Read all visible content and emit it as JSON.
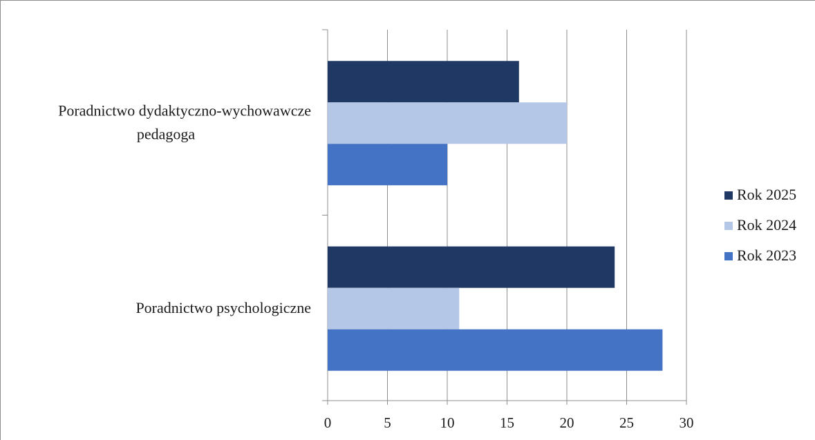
{
  "chart_data": {
    "type": "bar",
    "orientation": "horizontal",
    "categories": [
      "Poradnictwo dydaktyczno-wychowawcze pedagoga",
      "Poradnictwo psychologiczne"
    ],
    "category_lines": [
      [
        "Poradnictwo dydaktyczno-wychowawcze",
        "pedagoga"
      ],
      [
        "Poradnictwo psychologiczne"
      ]
    ],
    "series": [
      {
        "name": "Rok 2025",
        "color": "#203864",
        "values": [
          16,
          24
        ]
      },
      {
        "name": "Rok 2024",
        "color": "#b4c7e7",
        "values": [
          20,
          11
        ]
      },
      {
        "name": "Rok 2023",
        "color": "#4472c4",
        "values": [
          10,
          28
        ]
      }
    ],
    "xlim": [
      0,
      30
    ],
    "x_ticks": [
      0,
      5,
      10,
      15,
      20,
      25,
      30
    ],
    "grid": true,
    "legend_position": "right"
  }
}
